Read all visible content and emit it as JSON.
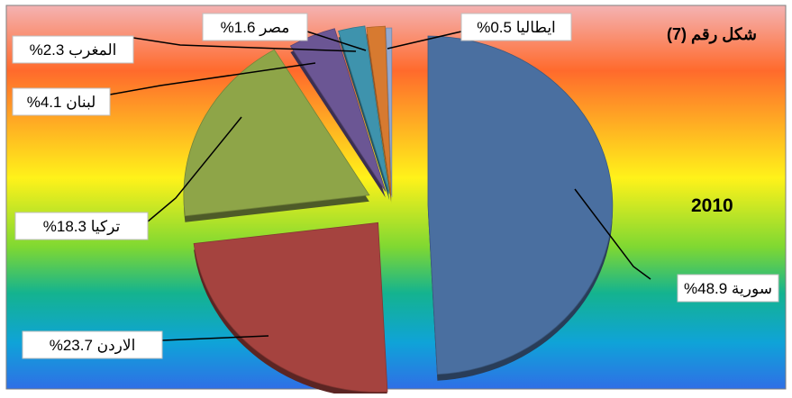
{
  "chart_data": {
    "type": "pie",
    "title": "شكل رقم (7)",
    "subtitle": "2010",
    "slices": [
      {
        "label": "سورية",
        "value": 48.9,
        "text": "سورية 48.9%",
        "color": "#4a6fa0"
      },
      {
        "label": "الاردن",
        "value": 23.7,
        "text": "الاردن 23.7%",
        "color": "#a5433f"
      },
      {
        "label": "تركيا",
        "value": 18.3,
        "text": "تركيا 18.3%",
        "color": "#8ea548"
      },
      {
        "label": "لبنان",
        "value": 4.1,
        "text": "لبنان 4.1%",
        "color": "#6b5694"
      },
      {
        "label": "المغرب",
        "value": 2.3,
        "text": "المغرب 2.3%",
        "color": "#3e93ad"
      },
      {
        "label": "مصر",
        "value": 1.6,
        "text": "مصر 1.6%",
        "color": "#d77a30"
      },
      {
        "label": "ايطاليا",
        "value": 0.5,
        "text": "ايطاليا 0.5%",
        "color": "#93a9cf"
      }
    ],
    "background": [
      "#f4b3b3",
      "#ff6a2c",
      "#fff21a",
      "#7fd832",
      "#14b38f",
      "#0fa3d8",
      "#2f6fe6"
    ]
  }
}
